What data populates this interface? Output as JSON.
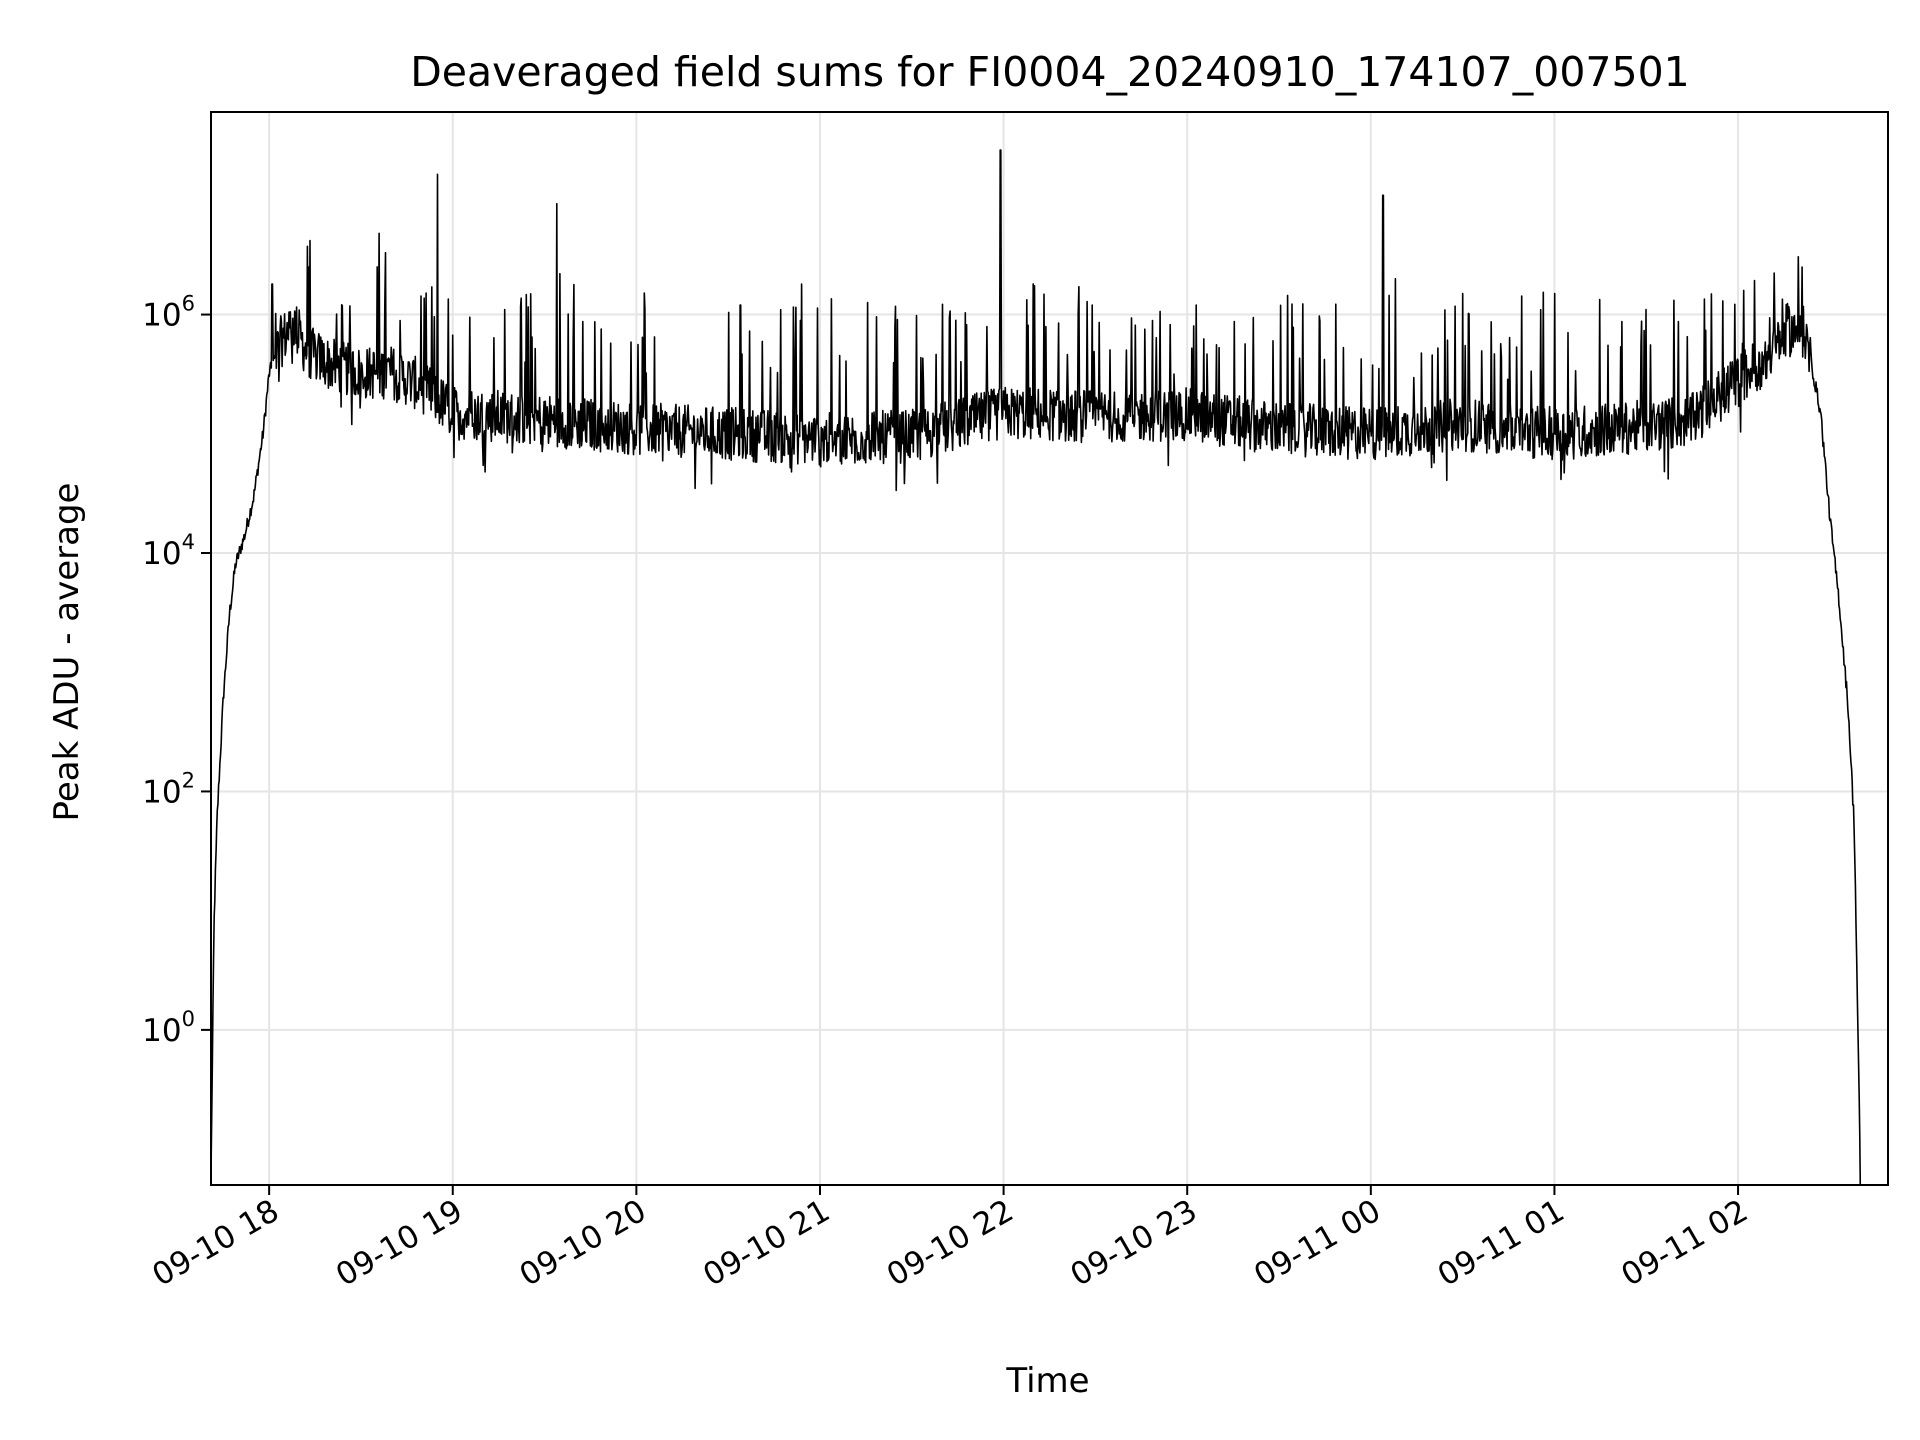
{
  "chart_data": {
    "type": "line",
    "title": "Deaveraged field sums for FI0004_20240910_174107_007501",
    "xlabel": "Time",
    "ylabel": "Peak ADU - average",
    "yscale": "log",
    "grid": true,
    "line_color": "#000000",
    "grid_color": "#e5e5e5",
    "xlim": [
      "2024-09-10 17:41",
      "2024-09-11 02:49"
    ],
    "ylim": [
      0.05,
      50000000
    ],
    "x_ticks": [
      {
        "value": "2024-09-10 18:00",
        "label": "09-10 18"
      },
      {
        "value": "2024-09-10 19:00",
        "label": "09-10 19"
      },
      {
        "value": "2024-09-10 20:00",
        "label": "09-10 20"
      },
      {
        "value": "2024-09-10 21:00",
        "label": "09-10 21"
      },
      {
        "value": "2024-09-10 22:00",
        "label": "09-10 22"
      },
      {
        "value": "2024-09-10 23:00",
        "label": "09-10 23"
      },
      {
        "value": "2024-09-11 00:00",
        "label": "09-11 00"
      },
      {
        "value": "2024-09-11 01:00",
        "label": "09-11 01"
      },
      {
        "value": "2024-09-11 02:00",
        "label": "09-11 02"
      }
    ],
    "y_ticks": [
      {
        "value": 1,
        "base": "10",
        "exp": "0"
      },
      {
        "value": 100,
        "base": "10",
        "exp": "2"
      },
      {
        "value": 10000,
        "base": "10",
        "exp": "4"
      },
      {
        "value": 1000000,
        "base": "10",
        "exp": "6"
      }
    ],
    "series": [
      {
        "baseline": [
          [
            "2024-09-10 17:41",
            0.06
          ],
          [
            "2024-09-10 17:42",
            8
          ],
          [
            "2024-09-10 17:43",
            60
          ],
          [
            "2024-09-10 17:45",
            600
          ],
          [
            "2024-09-10 17:47",
            3000
          ],
          [
            "2024-09-10 17:49",
            8000
          ],
          [
            "2024-09-10 17:52",
            14000
          ],
          [
            "2024-09-10 17:55",
            30000
          ],
          [
            "2024-09-10 17:58",
            100000
          ],
          [
            "2024-09-10 18:00",
            320000
          ],
          [
            "2024-09-10 18:04",
            600000
          ],
          [
            "2024-09-10 18:08",
            850000
          ],
          [
            "2024-09-10 18:12",
            500000
          ],
          [
            "2024-09-10 18:20",
            380000
          ],
          [
            "2024-09-10 18:30",
            320000
          ],
          [
            "2024-09-10 18:40",
            330000
          ],
          [
            "2024-09-10 18:50",
            250000
          ],
          [
            "2024-09-10 19:00",
            150000
          ],
          [
            "2024-09-10 19:15",
            140000
          ],
          [
            "2024-09-10 19:30",
            130000
          ],
          [
            "2024-09-10 19:45",
            120000
          ],
          [
            "2024-09-10 20:00",
            110000
          ],
          [
            "2024-09-10 20:30",
            100000
          ],
          [
            "2024-09-10 21:00",
            90000
          ],
          [
            "2024-09-10 21:30",
            95000
          ],
          [
            "2024-09-10 22:00",
            150000
          ],
          [
            "2024-09-10 22:30",
            140000
          ],
          [
            "2024-09-10 23:00",
            145000
          ],
          [
            "2024-09-10 23:30",
            110000
          ],
          [
            "2024-09-11 00:00",
            100000
          ],
          [
            "2024-09-11 00:30",
            120000
          ],
          [
            "2024-09-11 01:00",
            100000
          ],
          [
            "2024-09-11 01:30",
            115000
          ],
          [
            "2024-09-11 01:45",
            130000
          ],
          [
            "2024-09-11 02:00",
            280000
          ],
          [
            "2024-09-11 02:10",
            450000
          ],
          [
            "2024-09-11 02:16",
            750000
          ],
          [
            "2024-09-11 02:22",
            700000
          ],
          [
            "2024-09-11 02:27",
            150000
          ],
          [
            "2024-09-11 02:30",
            20000
          ],
          [
            "2024-09-11 02:33",
            4000
          ],
          [
            "2024-09-11 02:36",
            500
          ],
          [
            "2024-09-11 02:38",
            50
          ],
          [
            "2024-09-11 02:40",
            0.06
          ]
        ],
        "spikes": [
          [
            "2024-09-10 18:01",
            1800000
          ],
          [
            "2024-09-10 18:13",
            2500000
          ],
          [
            "2024-09-10 18:38",
            3300000
          ],
          [
            "2024-09-10 18:55",
            15000000
          ],
          [
            "2024-09-10 19:17",
            1100000
          ],
          [
            "2024-09-10 19:34",
            8500000
          ],
          [
            "2024-09-10 19:35",
            2200000
          ],
          [
            "2024-09-10 20:34",
            1200000
          ],
          [
            "2024-09-10 20:54",
            1800000
          ],
          [
            "2024-09-10 21:59",
            24000000
          ],
          [
            "2024-09-10 22:29",
            1200000
          ],
          [
            "2024-09-10 23:03",
            1200000
          ],
          [
            "2024-09-11 00:04",
            10000000
          ],
          [
            "2024-09-11 00:08",
            2000000
          ],
          [
            "2024-09-11 00:30",
            1500000
          ],
          [
            "2024-09-11 01:00",
            1500000
          ],
          [
            "2024-09-11 01:30",
            1100000
          ],
          [
            "2024-09-11 02:21",
            2500000
          ]
        ]
      }
    ]
  }
}
